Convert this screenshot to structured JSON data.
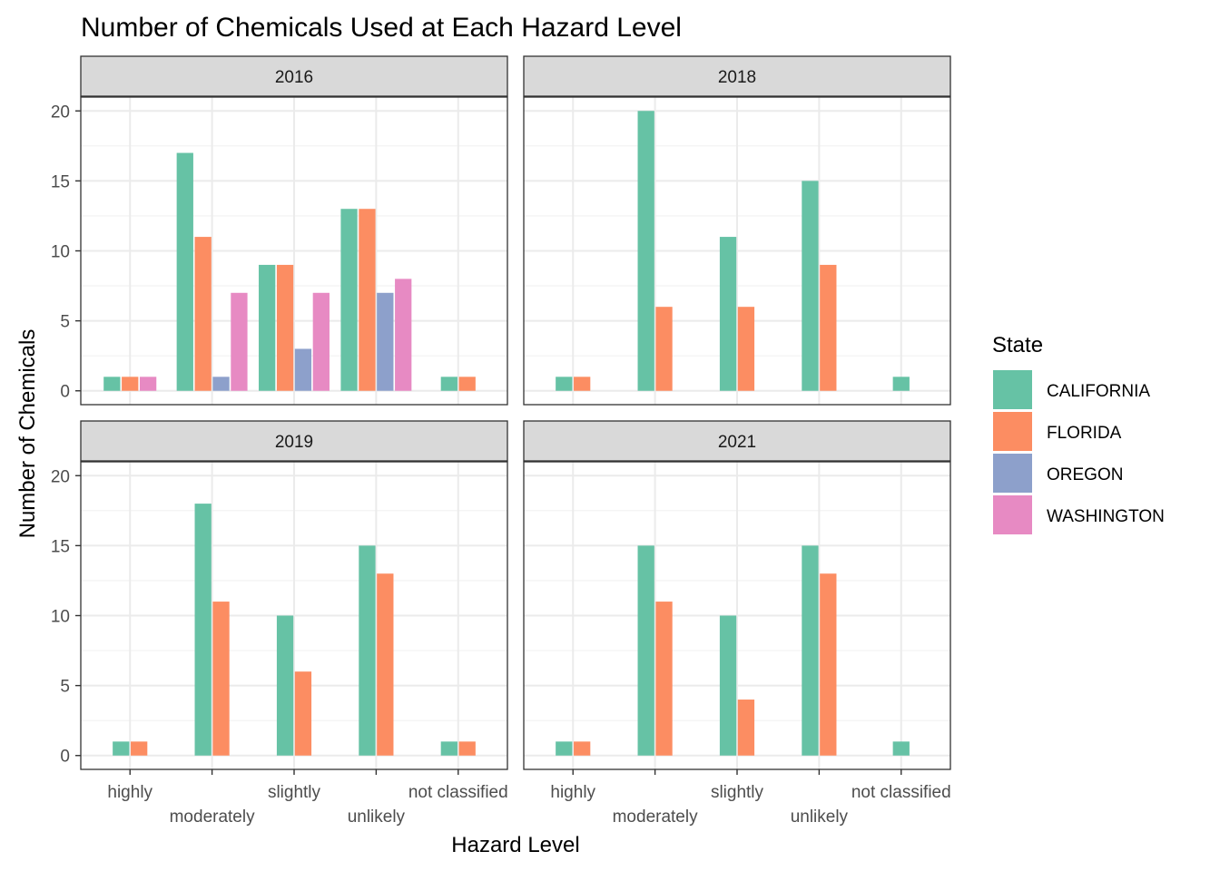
{
  "chart_data": {
    "type": "bar",
    "title": "Number of Chemicals Used at Each Hazard Level",
    "xlabel": "Hazard Level",
    "ylabel": "Number of Chemicals",
    "categories": [
      "highly",
      "moderately",
      "slightly",
      "unlikely",
      "not classified"
    ],
    "ylim": [
      0,
      20
    ],
    "yticks": [
      0,
      5,
      10,
      15,
      20
    ],
    "grid": true,
    "legend": {
      "title": "State",
      "position": "right",
      "items": [
        {
          "name": "CALIFORNIA",
          "color": "#66C2A5"
        },
        {
          "name": "FLORIDA",
          "color": "#FC8D62"
        },
        {
          "name": "OREGON",
          "color": "#8DA0CB"
        },
        {
          "name": "WASHINGTON",
          "color": "#E78AC3"
        }
      ]
    },
    "panels": [
      {
        "label": "2016",
        "groups": [
          [
            {
              "state": "CALIFORNIA",
              "value": 1
            },
            {
              "state": "FLORIDA",
              "value": 1
            },
            {
              "state": "WASHINGTON",
              "value": 1
            }
          ],
          [
            {
              "state": "CALIFORNIA",
              "value": 17
            },
            {
              "state": "FLORIDA",
              "value": 11
            },
            {
              "state": "OREGON",
              "value": 1
            },
            {
              "state": "WASHINGTON",
              "value": 7
            }
          ],
          [
            {
              "state": "CALIFORNIA",
              "value": 9
            },
            {
              "state": "FLORIDA",
              "value": 9
            },
            {
              "state": "OREGON",
              "value": 3
            },
            {
              "state": "WASHINGTON",
              "value": 7
            }
          ],
          [
            {
              "state": "CALIFORNIA",
              "value": 13
            },
            {
              "state": "FLORIDA",
              "value": 13
            },
            {
              "state": "OREGON",
              "value": 7
            },
            {
              "state": "WASHINGTON",
              "value": 8
            }
          ],
          [
            {
              "state": "CALIFORNIA",
              "value": 1
            },
            {
              "state": "FLORIDA",
              "value": 1
            }
          ]
        ]
      },
      {
        "label": "2018",
        "groups": [
          [
            {
              "state": "CALIFORNIA",
              "value": 1
            },
            {
              "state": "FLORIDA",
              "value": 1
            }
          ],
          [
            {
              "state": "CALIFORNIA",
              "value": 20
            },
            {
              "state": "FLORIDA",
              "value": 6
            }
          ],
          [
            {
              "state": "CALIFORNIA",
              "value": 11
            },
            {
              "state": "FLORIDA",
              "value": 6
            }
          ],
          [
            {
              "state": "CALIFORNIA",
              "value": 15
            },
            {
              "state": "FLORIDA",
              "value": 9
            }
          ],
          [
            {
              "state": "CALIFORNIA",
              "value": 1
            }
          ]
        ]
      },
      {
        "label": "2019",
        "groups": [
          [
            {
              "state": "CALIFORNIA",
              "value": 1
            },
            {
              "state": "FLORIDA",
              "value": 1
            }
          ],
          [
            {
              "state": "CALIFORNIA",
              "value": 18
            },
            {
              "state": "FLORIDA",
              "value": 11
            }
          ],
          [
            {
              "state": "CALIFORNIA",
              "value": 10
            },
            {
              "state": "FLORIDA",
              "value": 6
            }
          ],
          [
            {
              "state": "CALIFORNIA",
              "value": 15
            },
            {
              "state": "FLORIDA",
              "value": 13
            }
          ],
          [
            {
              "state": "CALIFORNIA",
              "value": 1
            },
            {
              "state": "FLORIDA",
              "value": 1
            }
          ]
        ]
      },
      {
        "label": "2021",
        "groups": [
          [
            {
              "state": "CALIFORNIA",
              "value": 1
            },
            {
              "state": "FLORIDA",
              "value": 1
            }
          ],
          [
            {
              "state": "CALIFORNIA",
              "value": 15
            },
            {
              "state": "FLORIDA",
              "value": 11
            }
          ],
          [
            {
              "state": "CALIFORNIA",
              "value": 10
            },
            {
              "state": "FLORIDA",
              "value": 4
            }
          ],
          [
            {
              "state": "CALIFORNIA",
              "value": 15
            },
            {
              "state": "FLORIDA",
              "value": 13
            }
          ],
          [
            {
              "state": "CALIFORNIA",
              "value": 1
            }
          ]
        ]
      }
    ]
  }
}
